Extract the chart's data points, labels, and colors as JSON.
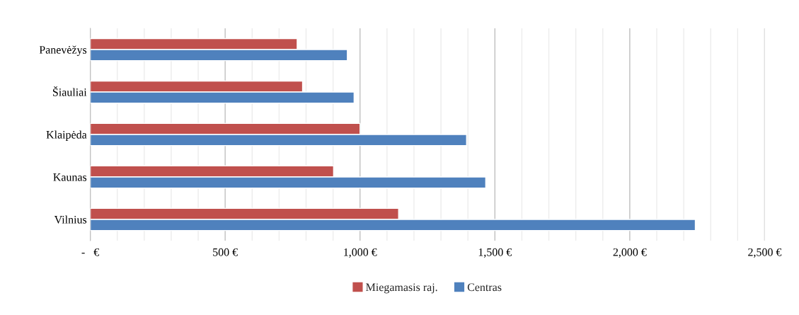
{
  "chart_data": {
    "type": "bar",
    "orientation": "horizontal",
    "categories": [
      "Panevėžys",
      "Šiauliai",
      "Klaipėda",
      "Kaunas",
      "Vilnius"
    ],
    "series": [
      {
        "name": "Miegamasis raj.",
        "color": "#c0504d",
        "values": [
          767,
          787,
          1000,
          902,
          1143
        ]
      },
      {
        "name": "Centras",
        "color": "#4f81bd",
        "values": [
          953,
          978,
          1395,
          1466,
          2243
        ]
      }
    ],
    "xlim": [
      0,
      2500
    ],
    "xticks": [
      {
        "value": 0,
        "label": "-   €"
      },
      {
        "value": 100,
        "label": null
      },
      {
        "value": 200,
        "label": null
      },
      {
        "value": 300,
        "label": null
      },
      {
        "value": 400,
        "label": null
      },
      {
        "value": 500,
        "label": "500 €"
      },
      {
        "value": 600,
        "label": null
      },
      {
        "value": 700,
        "label": null
      },
      {
        "value": 800,
        "label": null
      },
      {
        "value": 900,
        "label": null
      },
      {
        "value": 1000,
        "label": "1,000 €"
      },
      {
        "value": 1100,
        "label": null
      },
      {
        "value": 1200,
        "label": null
      },
      {
        "value": 1300,
        "label": null
      },
      {
        "value": 1400,
        "label": null
      },
      {
        "value": 1500,
        "label": "1,500 €"
      },
      {
        "value": 1600,
        "label": null
      },
      {
        "value": 1700,
        "label": null
      },
      {
        "value": 1800,
        "label": null
      },
      {
        "value": 1900,
        "label": null
      },
      {
        "value": 2000,
        "label": "2,000 €"
      },
      {
        "value": 2100,
        "label": null
      },
      {
        "value": 2200,
        "label": null
      },
      {
        "value": 2300,
        "label": null
      },
      {
        "value": 2400,
        "label": null
      },
      {
        "value": 2500,
        "label": "2,500 €"
      }
    ],
    "grid": "x",
    "legend": "bottom"
  }
}
